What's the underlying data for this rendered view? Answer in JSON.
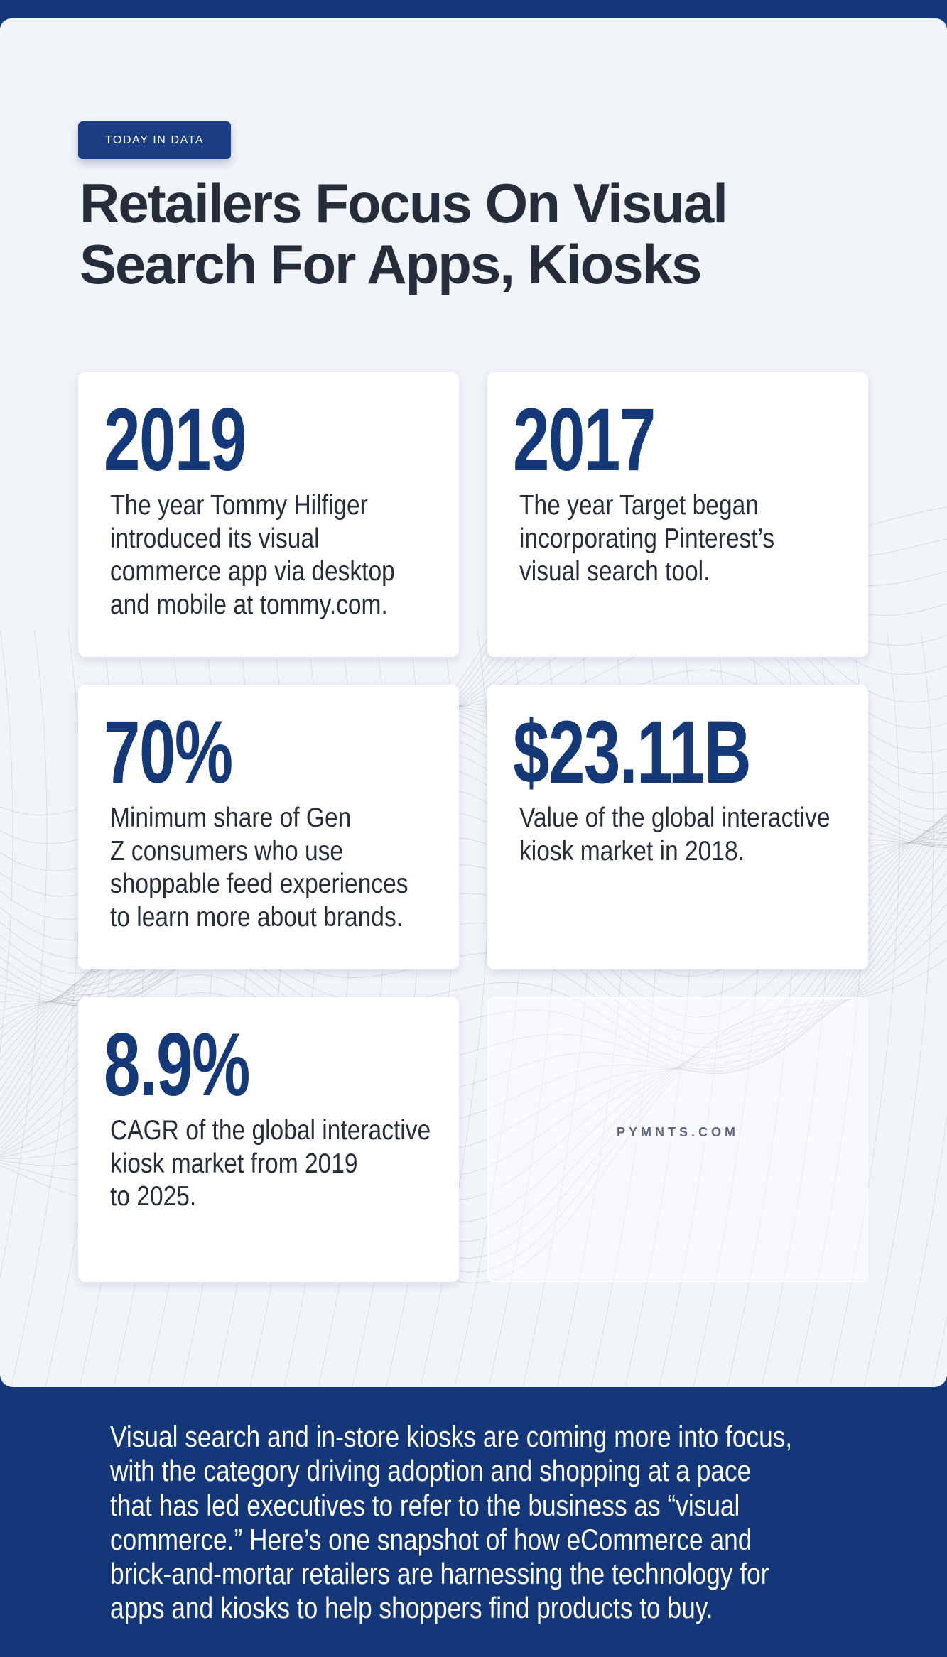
{
  "colors": {
    "navy": "#14377a",
    "number": "#153878",
    "panel": "#f1f4f9",
    "text": "#262e3c"
  },
  "header": {
    "tag": "TODAY IN DATA",
    "title_lines": [
      "Retailers Focus On Visual",
      "Search For Apps, Kiosks"
    ]
  },
  "stats": [
    {
      "value": "2019",
      "description_lines": [
        "The year Tommy Hilfiger",
        "introduced its visual",
        "commerce app via desktop",
        "and mobile at tommy.com."
      ]
    },
    {
      "value": "2017",
      "description_lines": [
        "The year Target began",
        "incorporating Pinterest’s",
        "visual search tool."
      ]
    },
    {
      "value": "70%",
      "description_lines": [
        "Minimum share of Gen",
        "Z consumers who use",
        "shoppable feed experiences",
        "to learn more about brands."
      ]
    },
    {
      "value": "$23.11B",
      "description_lines": [
        "Value of the global interactive",
        "kiosk market in 2018."
      ]
    },
    {
      "value": "8.9%",
      "description_lines": [
        "CAGR of the global interactive",
        "kiosk market from 2019",
        "to 2025."
      ]
    }
  ],
  "brand": "PYMNTS.COM",
  "summary_lines": [
    "Visual search and in-store kiosks are coming more into focus,",
    "with the category driving adoption and shopping at a pace",
    "that has led executives to refer to the business as “visual",
    "commerce.” Here’s one snapshot of how eCommerce and",
    "brick-and-mortar retailers are harnessing the technology for",
    "apps and kiosks to help shoppers find products to buy."
  ]
}
